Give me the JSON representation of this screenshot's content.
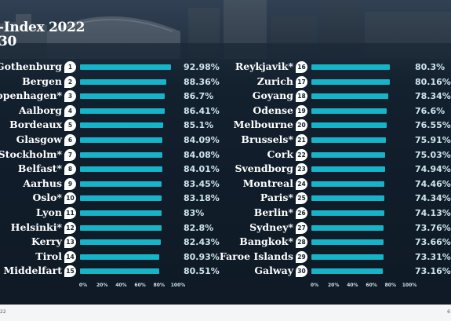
{
  "header": {
    "title_line1": "-Index 2022",
    "title_line2": "30"
  },
  "footer": {
    "left": "22",
    "right": "6"
  },
  "chart_data": {
    "type": "bar",
    "orientation": "horizontal",
    "xlim": [
      0,
      100
    ],
    "xticks": [
      "0%",
      "20%",
      "40%",
      "60%",
      "80%",
      "100%"
    ],
    "bar_color": "#17b3c8",
    "rows": [
      {
        "rank": "1",
        "city": "Gothenburg",
        "value": 92.98,
        "label": "92.98%"
      },
      {
        "rank": "2",
        "city": "Bergen",
        "value": 88.36,
        "label": "88.36%"
      },
      {
        "rank": "3",
        "city": "Copenhagen*",
        "value": 86.7,
        "label": "86.7%"
      },
      {
        "rank": "4",
        "city": "Aalborg",
        "value": 86.41,
        "label": "86.41%"
      },
      {
        "rank": "5",
        "city": "Bordeaux",
        "value": 85.1,
        "label": "85.1%"
      },
      {
        "rank": "6",
        "city": "Glasgow",
        "value": 84.09,
        "label": "84.09%"
      },
      {
        "rank": "7",
        "city": "Stockholm*",
        "value": 84.08,
        "label": "84.08%"
      },
      {
        "rank": "8",
        "city": "Belfast*",
        "value": 84.01,
        "label": "84.01%"
      },
      {
        "rank": "9",
        "city": "Aarhus",
        "value": 83.45,
        "label": "83.45%"
      },
      {
        "rank": "10",
        "city": "Oslo*",
        "value": 83.18,
        "label": "83.18%"
      },
      {
        "rank": "11",
        "city": "Lyon",
        "value": 83,
        "label": "83%"
      },
      {
        "rank": "12",
        "city": "Helsinki*",
        "value": 82.8,
        "label": "82.8%"
      },
      {
        "rank": "13",
        "city": "Kerry",
        "value": 82.43,
        "label": "82.43%"
      },
      {
        "rank": "14",
        "city": "Tirol",
        "value": 80.93,
        "label": "80.93%"
      },
      {
        "rank": "15",
        "city": "Middelfart",
        "value": 80.51,
        "label": "80.51%"
      },
      {
        "rank": "16",
        "city": "Reykjavik*",
        "value": 80.3,
        "label": "80.3%"
      },
      {
        "rank": "17",
        "city": "Zurich",
        "value": 80.16,
        "label": "80.16%"
      },
      {
        "rank": "18",
        "city": "Goyang",
        "value": 78.34,
        "label": "78.34%"
      },
      {
        "rank": "19",
        "city": "Odense",
        "value": 76.6,
        "label": "76.6%"
      },
      {
        "rank": "20",
        "city": "Melbourne",
        "value": 76.55,
        "label": "76.55%"
      },
      {
        "rank": "21",
        "city": "Brussels*",
        "value": 75.91,
        "label": "75.91%"
      },
      {
        "rank": "22",
        "city": "Cork",
        "value": 75.03,
        "label": "75.03%"
      },
      {
        "rank": "23",
        "city": "Svendborg",
        "value": 74.94,
        "label": "74.94%"
      },
      {
        "rank": "24",
        "city": "Montreal",
        "value": 74.46,
        "label": "74.46%"
      },
      {
        "rank": "25",
        "city": "Paris*",
        "value": 74.34,
        "label": "74.34%"
      },
      {
        "rank": "26",
        "city": "Berlin*",
        "value": 74.13,
        "label": "74.13%"
      },
      {
        "rank": "27",
        "city": "Sydney*",
        "value": 73.76,
        "label": "73.76%"
      },
      {
        "rank": "28",
        "city": "Bangkok*",
        "value": 73.66,
        "label": "73.66%"
      },
      {
        "rank": "29",
        "city": "Faroe Islands",
        "value": 73.31,
        "label": "73.31%"
      },
      {
        "rank": "30",
        "city": "Galway",
        "value": 73.16,
        "label": "73.16%"
      }
    ]
  }
}
